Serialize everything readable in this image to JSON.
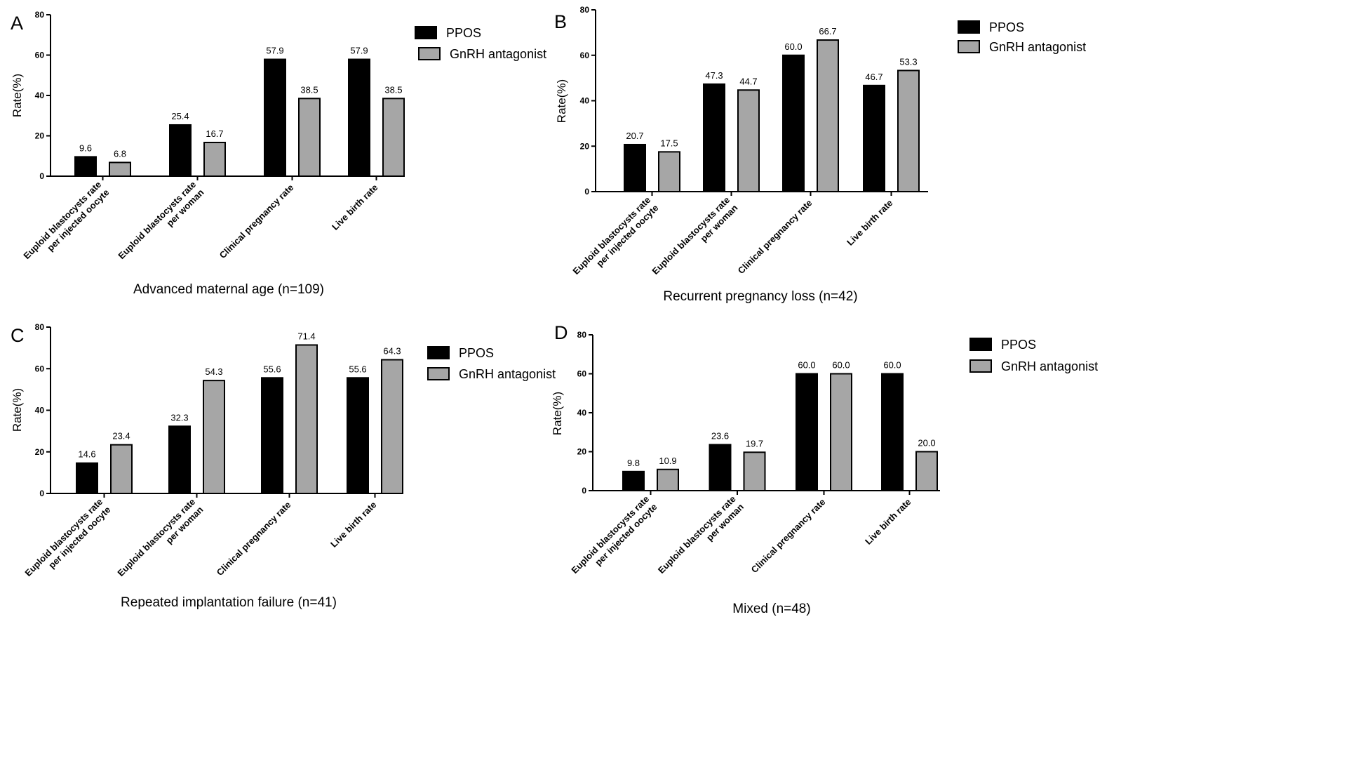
{
  "colors": {
    "ppos": "#000000",
    "antagonist": "#a6a6a6",
    "outline": "#000000"
  },
  "chart_data": [
    {
      "type": "bar",
      "panel_label": "A",
      "subtitle": "Advanced maternal age (n=109)",
      "ylabel": "Rate(%)",
      "xlabel": "",
      "ylim": [
        0,
        80
      ],
      "yticks": [
        "0",
        "20",
        "40",
        "60",
        "80"
      ],
      "categories": [
        [
          "Euploid blastocysts rate",
          "per injected oocyte"
        ],
        [
          "Euploid blastocysts rate",
          "per woman"
        ],
        [
          "Clinical pregnancy rate"
        ],
        [
          "Live birth rate"
        ]
      ],
      "series": [
        {
          "name": "PPOS",
          "values": [
            9.6,
            25.4,
            57.9,
            57.9
          ],
          "labels": [
            "9.6",
            "25.4",
            "57.9",
            "57.9"
          ]
        },
        {
          "name": "GnRH antagonist",
          "values": [
            6.8,
            16.7,
            38.5,
            38.5
          ],
          "labels": [
            "6.8",
            "16.7",
            "38.5",
            "38.5"
          ]
        }
      ],
      "legend": "top-right",
      "grid": false
    },
    {
      "type": "bar",
      "panel_label": "B",
      "subtitle": "Recurrent pregnancy loss (n=42)",
      "ylabel": "Rate(%)",
      "xlabel": "",
      "ylim": [
        0,
        80
      ],
      "yticks": [
        "0",
        "20",
        "40",
        "60",
        "80"
      ],
      "categories": [
        [
          "Euploid blastocysts rate",
          "per injected oocyte"
        ],
        [
          "Euploid blastocysts rate",
          "per woman"
        ],
        [
          "Clinical pregnancy rate"
        ],
        [
          "Live birth rate"
        ]
      ],
      "series": [
        {
          "name": "PPOS",
          "values": [
            20.7,
            47.3,
            60.0,
            46.7
          ],
          "labels": [
            "20.7",
            "47.3",
            "60.0",
            "46.7"
          ]
        },
        {
          "name": "GnRH antagonist",
          "values": [
            17.5,
            44.7,
            66.7,
            53.3
          ],
          "labels": [
            "17.5",
            "44.7",
            "66.7",
            "53.3"
          ]
        }
      ],
      "legend": "top-right",
      "grid": false
    },
    {
      "type": "bar",
      "panel_label": "C",
      "subtitle": "Repeated implantation failure (n=41)",
      "ylabel": "Rate(%)",
      "xlabel": "",
      "ylim": [
        0,
        80
      ],
      "yticks": [
        "0",
        "20",
        "40",
        "60",
        "80"
      ],
      "categories": [
        [
          "Euploid blastocysts rate",
          "per injected oocyte"
        ],
        [
          "Euploid blastocysts rate",
          "per woman"
        ],
        [
          "Clinical pregnancy rate"
        ],
        [
          "Live birth rate"
        ]
      ],
      "series": [
        {
          "name": "PPOS",
          "values": [
            14.6,
            32.3,
            55.6,
            55.6
          ],
          "labels": [
            "14.6",
            "32.3",
            "55.6",
            "55.6"
          ]
        },
        {
          "name": "GnRH antagonist",
          "values": [
            23.4,
            54.3,
            71.4,
            64.3
          ],
          "labels": [
            "23.4",
            "54.3",
            "71.4",
            "64.3"
          ]
        }
      ],
      "legend": "top-right",
      "grid": false
    },
    {
      "type": "bar",
      "panel_label": "D",
      "subtitle": "Mixed (n=48)",
      "ylabel": "Rate(%)",
      "xlabel": "",
      "ylim": [
        0,
        80
      ],
      "yticks": [
        "0",
        "20",
        "40",
        "60",
        "80"
      ],
      "categories": [
        [
          "Euploid blastocysts rate",
          "per injected oocyte"
        ],
        [
          "Euploid blastocysts rate",
          "per woman"
        ],
        [
          "Clinical pregnancy rate"
        ],
        [
          "Live birth rate"
        ]
      ],
      "series": [
        {
          "name": "PPOS",
          "values": [
            9.8,
            23.6,
            60.0,
            60.0
          ],
          "labels": [
            "9.8",
            "23.6",
            "60.0",
            "60.0"
          ]
        },
        {
          "name": "GnRH antagonist",
          "values": [
            10.9,
            19.7,
            60.0,
            20.0
          ],
          "labels": [
            "10.9",
            "19.7",
            "60.0",
            "20.0"
          ]
        }
      ],
      "legend": "top-right",
      "grid": false
    }
  ]
}
